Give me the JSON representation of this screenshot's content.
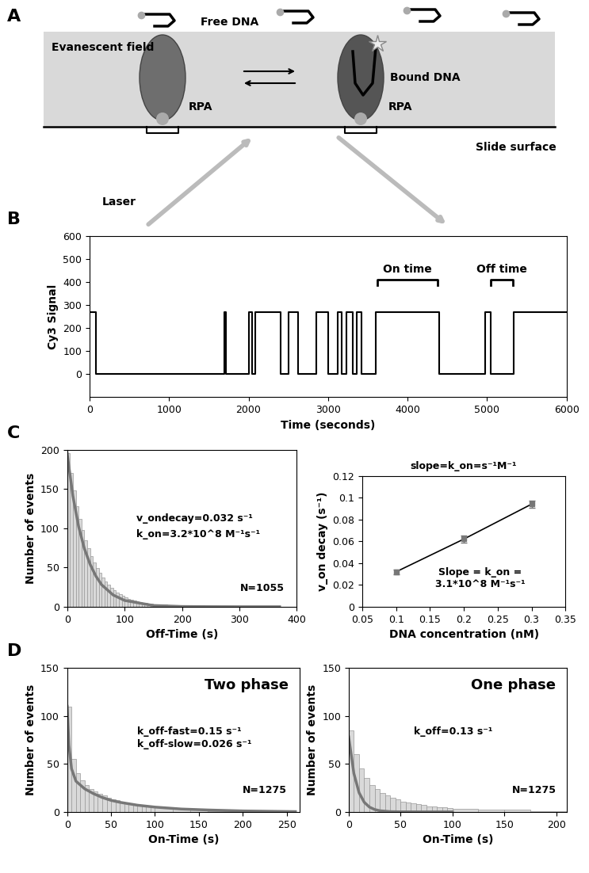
{
  "diagram": {
    "panel": "A",
    "labels": {
      "free_dna": "Free DNA",
      "evanescent_field": "Evanescent field",
      "rpa_left": "RPA",
      "bound_dna": "Bound DNA",
      "rpa_right": "RPA",
      "laser": "Laser",
      "slide_surface": "Slide surface"
    }
  },
  "chart_data": [
    {
      "panel": "B",
      "type": "line",
      "xlabel": "Time (seconds)",
      "ylabel": "Cy3 Signal",
      "xlim": [
        0,
        6000
      ],
      "xticks": [
        0,
        1000,
        2000,
        3000,
        4000,
        5000,
        6000
      ],
      "ylim": [
        -100,
        600
      ],
      "yticks": [
        0,
        100,
        200,
        300,
        400,
        500,
        600
      ],
      "series": [
        {
          "color": "#000000",
          "line_style": "step",
          "x": [
            0,
            80,
            1700,
            1720,
            2000,
            2040,
            2080,
            2400,
            2500,
            2620,
            2850,
            3000,
            3120,
            3170,
            3230,
            3310,
            3360,
            3420,
            3600,
            4400,
            4980,
            5050,
            5330,
            6000
          ],
          "values": [
            270,
            0,
            270,
            0,
            270,
            0,
            270,
            0,
            270,
            0,
            270,
            0,
            270,
            0,
            270,
            0,
            270,
            0,
            270,
            0,
            270,
            0,
            270,
            270
          ]
        }
      ],
      "annotations": [
        {
          "text": "On time",
          "x": [
            3620,
            4380
          ],
          "y": 410
        },
        {
          "text": "Off time",
          "x": [
            5050,
            5320
          ],
          "y": 410
        }
      ]
    },
    {
      "panel": "C",
      "type": "histogram",
      "xlabel": "Off-Time (s)",
      "ylabel": "Number of events",
      "xlim": [
        0,
        400
      ],
      "xticks": [
        0,
        100,
        200,
        300,
        400
      ],
      "ylim": [
        0,
        200
      ],
      "yticks": [
        0,
        50,
        100,
        150,
        200
      ],
      "color": "#d9d9d9",
      "bins": [
        0,
        5,
        10,
        15,
        20,
        25,
        30,
        35,
        40,
        45,
        50,
        55,
        60,
        65,
        70,
        75,
        80,
        85,
        90,
        95,
        100,
        105,
        110,
        115,
        120,
        125,
        130,
        135,
        140,
        145,
        150,
        175,
        200,
        250,
        300,
        370
      ],
      "counts": [
        195,
        170,
        148,
        128,
        112,
        98,
        85,
        74,
        64,
        56,
        49,
        43,
        37,
        32,
        28,
        24,
        21,
        18,
        16,
        14,
        12,
        10,
        9,
        8,
        7,
        6,
        5,
        5,
        4,
        4,
        3,
        2,
        1,
        1,
        1
      ],
      "fit": {
        "color": "#777777",
        "x": [
          0,
          10,
          20,
          30,
          40,
          50,
          60,
          80,
          100,
          150,
          200,
          250,
          300,
          370
        ],
        "values": [
          195,
          141,
          102,
          74,
          54,
          39,
          28,
          15,
          8,
          1.6,
          0.3,
          0.1,
          0,
          0
        ]
      },
      "annotations": [
        "v_ondecay=0.032 s⁻¹",
        "k_on=3.2*10^8 M⁻¹s⁻¹",
        "N=1055"
      ]
    },
    {
      "type": "line",
      "title": "slope=k_on=s⁻¹M⁻¹",
      "xlabel": "DNA concentration (nM)",
      "ylabel": "v_on decay (s⁻¹)",
      "xlim": [
        0.05,
        0.35
      ],
      "xticks": [
        0.05,
        0.1,
        0.15,
        0.2,
        0.25,
        0.3,
        0.35
      ],
      "ylim": [
        0,
        0.12
      ],
      "yticks": [
        0,
        0.02,
        0.04,
        0.06,
        0.08,
        0.1,
        0.12
      ],
      "series": [
        {
          "color": "#000000",
          "marker": "square",
          "x": [
            0.1,
            0.2,
            0.3
          ],
          "values": [
            0.032,
            0.062,
            0.094
          ],
          "errors": [
            0.002,
            0.003,
            0.003
          ]
        }
      ],
      "annotations": [
        "Slope = k_on =\n3.1*10^8 M⁻¹s⁻¹"
      ]
    },
    {
      "panel": "D",
      "type": "histogram",
      "xlabel": "On-Time (s)",
      "ylabel": "Number of events",
      "xlim": [
        0,
        265
      ],
      "xticks": [
        0,
        50,
        100,
        150,
        200,
        250
      ],
      "ylim": [
        0,
        150
      ],
      "yticks": [
        0,
        50,
        100,
        150
      ],
      "color": "#d9d9d9",
      "bins": [
        0,
        5,
        10,
        15,
        20,
        25,
        30,
        35,
        40,
        45,
        50,
        55,
        60,
        65,
        70,
        75,
        80,
        85,
        90,
        95,
        100,
        120,
        140,
        160,
        200,
        260
      ],
      "counts": [
        110,
        55,
        40,
        33,
        28,
        24,
        21,
        19,
        17,
        15,
        13,
        12,
        11,
        10,
        9,
        8,
        7,
        7,
        6,
        6,
        5,
        3,
        2,
        1,
        1
      ],
      "fit": {
        "color": "#777777",
        "x": [
          0,
          2,
          5,
          10,
          20,
          30,
          40,
          50,
          60,
          80,
          100,
          130,
          160,
          200,
          260
        ],
        "values": [
          110,
          70,
          45,
          32,
          24,
          19,
          15,
          12,
          10,
          7,
          5,
          3,
          2,
          1,
          0.3
        ]
      },
      "annotations": [
        "Two phase",
        "k_off-fast=0.15 s⁻¹",
        "k_off-slow=0.026 s⁻¹",
        "N=1275"
      ]
    },
    {
      "type": "histogram",
      "xlabel": "On-Time (s)",
      "ylabel": "Number of events",
      "xlim": [
        0,
        210
      ],
      "xticks": [
        0,
        50,
        100,
        150,
        200
      ],
      "ylim": [
        0,
        150
      ],
      "yticks": [
        0,
        50,
        100,
        150
      ],
      "color": "#d9d9d9",
      "bins": [
        0,
        5,
        10,
        15,
        20,
        25,
        30,
        35,
        40,
        45,
        50,
        55,
        60,
        65,
        70,
        75,
        80,
        85,
        90,
        95,
        100,
        125,
        150,
        175,
        210
      ],
      "counts": [
        85,
        60,
        45,
        35,
        28,
        24,
        20,
        17,
        15,
        13,
        11,
        10,
        9,
        8,
        7,
        6,
        6,
        5,
        5,
        4,
        3,
        2,
        2,
        1
      ],
      "fit": {
        "color": "#777777",
        "x": [
          0,
          5,
          10,
          15,
          20,
          25,
          30,
          40,
          50,
          75,
          100
        ],
        "values": [
          78,
          40,
          20,
          10,
          5,
          2.5,
          1.2,
          0.3,
          0.1,
          0,
          0
        ]
      },
      "annotations": [
        "One phase",
        "k_off=0.13 s⁻¹",
        "N=1275"
      ]
    }
  ]
}
